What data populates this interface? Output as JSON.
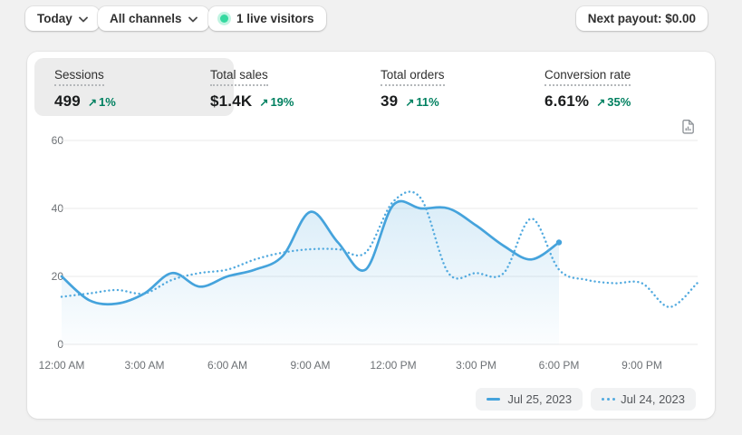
{
  "topbar": {
    "date_range_label": "Today",
    "channels_label": "All channels",
    "live_visitors_label": "1 live visitors",
    "next_payout_label": "Next payout: $0.00"
  },
  "metrics": [
    {
      "label": "Sessions",
      "value": "499",
      "arrow": "↗",
      "delta": "1%",
      "active": true
    },
    {
      "label": "Total sales",
      "value": "$1.4K",
      "arrow": "↗",
      "delta": "19%",
      "active": false
    },
    {
      "label": "Total orders",
      "value": "39",
      "arrow": "↗",
      "delta": "11%",
      "active": false
    },
    {
      "label": "Conversion rate",
      "value": "6.61%",
      "arrow": "↗",
      "delta": "35%",
      "active": false
    }
  ],
  "chart_data": {
    "type": "line",
    "x_axis": {
      "unit": "hour",
      "tick_labels": [
        "12:00 AM",
        "3:00 AM",
        "6:00 AM",
        "9:00 AM",
        "12:00 PM",
        "3:00 PM",
        "6:00 PM",
        "9:00 PM"
      ],
      "tick_hours": [
        0,
        3,
        6,
        9,
        12,
        15,
        18,
        21
      ],
      "range_hours": [
        0,
        23
      ]
    },
    "y_axis": {
      "ticks": [
        0,
        20,
        40,
        60
      ],
      "range": [
        0,
        60
      ]
    },
    "grid": "horizontal",
    "legend_position": "bottom-right",
    "series": [
      {
        "name": "Jul 25, 2023",
        "style": "solid",
        "color": "#45a3dc",
        "fill": true,
        "end_marker": true,
        "hours": [
          0,
          1,
          2,
          3,
          4,
          5,
          6,
          7,
          8,
          9,
          10,
          11,
          12,
          13,
          14,
          15,
          16,
          17,
          18
        ],
        "values": [
          20,
          13,
          12,
          15,
          21,
          17,
          20,
          22,
          26,
          39,
          30,
          22,
          41,
          40,
          40,
          35,
          29,
          25,
          30
        ]
      },
      {
        "name": "Jul 24, 2023",
        "style": "dotted",
        "color": "#52aadf",
        "fill": false,
        "end_marker": false,
        "hours": [
          0,
          1,
          2,
          3,
          4,
          5,
          6,
          7,
          8,
          9,
          10,
          11,
          12,
          13,
          14,
          15,
          16,
          17,
          18,
          19,
          20,
          21,
          22,
          23
        ],
        "values": [
          14,
          15,
          16,
          15,
          19,
          21,
          22,
          25,
          27,
          28,
          28,
          27,
          42,
          43,
          21,
          21,
          21,
          37,
          22,
          19,
          18,
          18,
          11,
          18
        ]
      }
    ]
  },
  "colors": {
    "accent_blue": "#45a3dc",
    "positive_green": "#008060",
    "live_dot_green": "#35d9a0",
    "page_bg": "#f1f1f1",
    "card_bg": "#ffffff",
    "active_tile_bg": "#ececec",
    "grid_line": "#e8e9ea",
    "axis_text": "#6d7175"
  }
}
